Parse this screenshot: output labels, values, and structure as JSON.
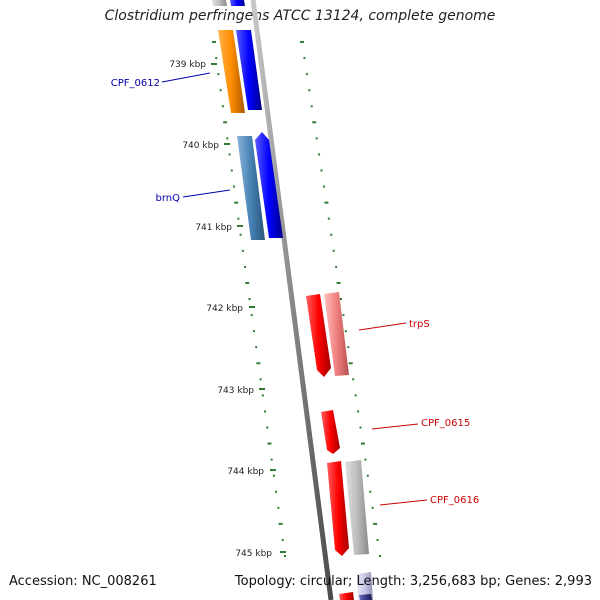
{
  "title": "Clostridium perfringens ATCC 13124, complete genome",
  "footer": {
    "accession": "Accession: NC_008261",
    "summary": "Topology: circular; Length: 3,256,683 bp; Genes: 2,993"
  },
  "colors": {
    "backbone": "#888888",
    "tick": "#2e7d32",
    "forward_cds": "#0000ff",
    "reverse_cds": "#ff0000",
    "label_forward": "#0000aa",
    "label_reverse": "#cc0000"
  },
  "scale_labels": [
    "739 kbp",
    "740 kbp",
    "741 kbp",
    "742 kbp",
    "743 kbp",
    "744 kbp",
    "745 kbp"
  ],
  "gene_labels": [
    {
      "name": "CPF_0612",
      "color": "#0000aa"
    },
    {
      "name": "brnQ",
      "color": "#0000aa"
    },
    {
      "name": "trpS",
      "color": "#cc0000"
    },
    {
      "name": "CPF_0615",
      "color": "#cc0000"
    },
    {
      "name": "CPF_0616",
      "color": "#cc0000"
    }
  ]
}
